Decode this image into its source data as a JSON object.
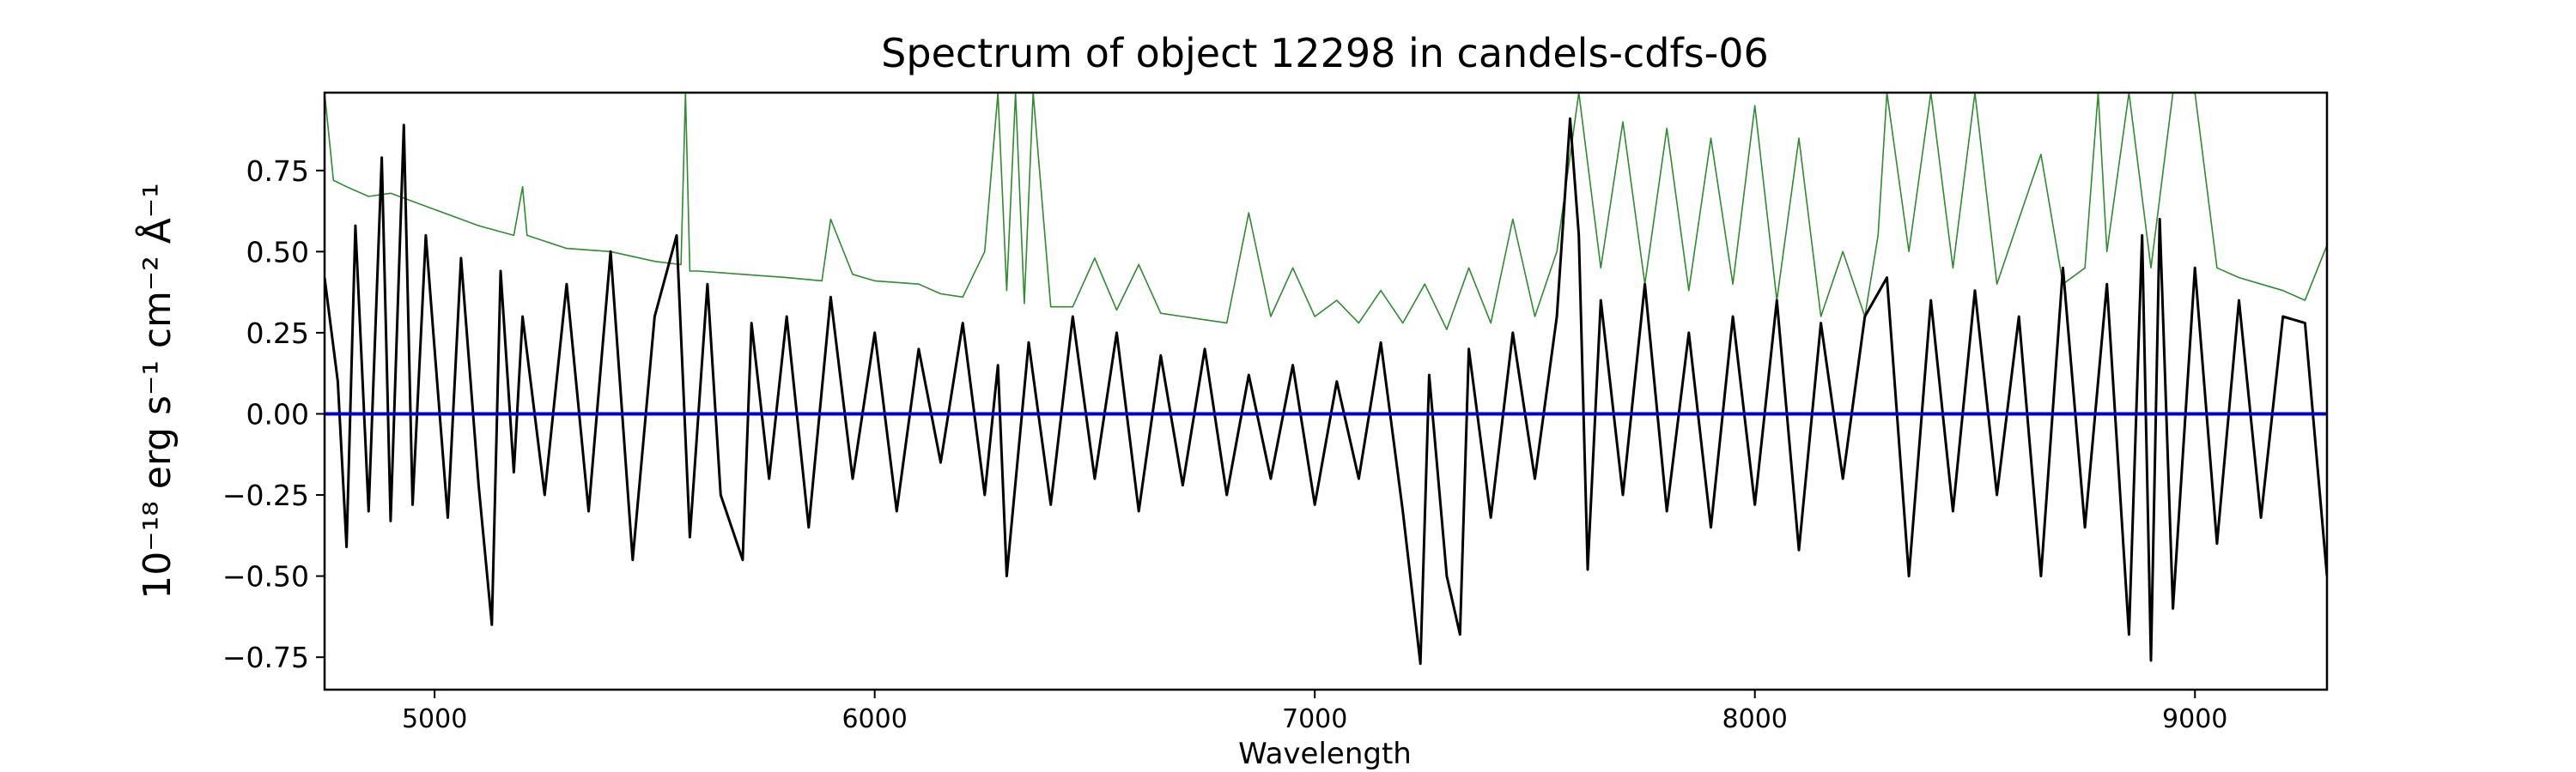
{
  "chart_data": {
    "type": "line",
    "title": "Spectrum of object 12298 in candels-cdfs-06",
    "xlabel": "Wavelength",
    "ylabel": "10⁻¹⁸ erg s⁻¹ cm⁻² Å⁻¹",
    "xlim": [
      4750,
      9300
    ],
    "ylim": [
      -0.85,
      0.99
    ],
    "grid": false,
    "x_ticks": [
      5000,
      6000,
      7000,
      8000,
      9000
    ],
    "y_ticks": [
      -0.75,
      -0.5,
      -0.25,
      0.0,
      0.25,
      0.5,
      0.75
    ],
    "x_tick_labels": [
      "5000",
      "6000",
      "7000",
      "8000",
      "9000"
    ],
    "y_tick_labels": [
      "−0.75",
      "−0.50",
      "−0.25",
      "0.00",
      "0.25",
      "0.50",
      "0.75"
    ],
    "series": [
      {
        "role": "flux",
        "color": "#000000",
        "x": [
          4750,
          4780,
          4800,
          4820,
          4850,
          4880,
          4900,
          4930,
          4950,
          4980,
          5000,
          5030,
          5060,
          5100,
          5130,
          5150,
          5180,
          5200,
          5250,
          5300,
          5350,
          5400,
          5450,
          5500,
          5550,
          5580,
          5620,
          5650,
          5700,
          5720,
          5760,
          5800,
          5850,
          5900,
          5950,
          6000,
          6050,
          6100,
          6150,
          6200,
          6250,
          6280,
          6300,
          6350,
          6400,
          6450,
          6500,
          6550,
          6600,
          6650,
          6700,
          6750,
          6800,
          6850,
          6900,
          6950,
          7000,
          7050,
          7100,
          7150,
          7200,
          7240,
          7260,
          7300,
          7330,
          7350,
          7400,
          7450,
          7500,
          7550,
          7580,
          7600,
          7620,
          7650,
          7700,
          7750,
          7800,
          7850,
          7900,
          7950,
          8000,
          8050,
          8100,
          8150,
          8200,
          8250,
          8300,
          8350,
          8400,
          8450,
          8500,
          8550,
          8600,
          8650,
          8700,
          8750,
          8800,
          8850,
          8880,
          8900,
          8920,
          8950,
          9000,
          9050,
          9100,
          9150,
          9200,
          9250,
          9300
        ],
        "y": [
          0.42,
          0.1,
          -0.41,
          0.58,
          -0.3,
          0.79,
          -0.33,
          0.89,
          -0.28,
          0.55,
          0.2,
          -0.32,
          0.48,
          -0.22,
          -0.65,
          0.44,
          -0.18,
          0.3,
          -0.25,
          0.4,
          -0.3,
          0.5,
          -0.45,
          0.3,
          0.55,
          -0.38,
          0.4,
          -0.25,
          -0.45,
          0.28,
          -0.2,
          0.3,
          -0.35,
          0.36,
          -0.2,
          0.25,
          -0.3,
          0.2,
          -0.15,
          0.28,
          -0.25,
          0.15,
          -0.5,
          0.22,
          -0.28,
          0.3,
          -0.2,
          0.25,
          -0.3,
          0.18,
          -0.22,
          0.2,
          -0.25,
          0.12,
          -0.2,
          0.15,
          -0.28,
          0.1,
          -0.2,
          0.22,
          -0.3,
          -0.77,
          0.12,
          -0.5,
          -0.68,
          0.2,
          -0.32,
          0.25,
          -0.2,
          0.3,
          0.91,
          0.55,
          -0.48,
          0.35,
          -0.25,
          0.4,
          -0.3,
          0.25,
          -0.35,
          0.3,
          -0.28,
          0.35,
          -0.42,
          0.28,
          -0.2,
          0.3,
          0.42,
          -0.5,
          0.35,
          -0.3,
          0.38,
          -0.25,
          0.3,
          -0.5,
          0.45,
          -0.35,
          0.4,
          -0.68,
          0.55,
          -0.76,
          0.6,
          -0.6,
          0.45,
          -0.4,
          0.35,
          -0.32,
          0.3,
          0.28,
          -0.5
        ]
      },
      {
        "role": "contamination",
        "color": "#2e8b2e",
        "x": [
          4750,
          4770,
          4800,
          4850,
          4900,
          5000,
          5100,
          5180,
          5200,
          5210,
          5300,
          5400,
          5500,
          5560,
          5570,
          5580,
          5600,
          5700,
          5800,
          5880,
          5900,
          5950,
          6000,
          6100,
          6150,
          6200,
          6250,
          6280,
          6300,
          6320,
          6340,
          6360,
          6400,
          6450,
          6500,
          6550,
          6600,
          6650,
          6700,
          6750,
          6800,
          6850,
          6900,
          6950,
          7000,
          7050,
          7100,
          7150,
          7200,
          7250,
          7300,
          7350,
          7400,
          7450,
          7500,
          7550,
          7600,
          7650,
          7700,
          7750,
          7800,
          7850,
          7900,
          7950,
          8000,
          8050,
          8100,
          8150,
          8200,
          8250,
          8280,
          8300,
          8350,
          8400,
          8450,
          8500,
          8550,
          8600,
          8650,
          8700,
          8750,
          8780,
          8800,
          8850,
          8900,
          8950,
          9000,
          9050,
          9100,
          9150,
          9200,
          9250,
          9300
        ],
        "y": [
          0.99,
          0.72,
          0.7,
          0.67,
          0.68,
          0.63,
          0.58,
          0.55,
          0.7,
          0.55,
          0.51,
          0.5,
          0.47,
          0.46,
          0.99,
          0.44,
          0.44,
          0.43,
          0.42,
          0.41,
          0.6,
          0.43,
          0.41,
          0.4,
          0.37,
          0.36,
          0.5,
          0.99,
          0.38,
          0.99,
          0.34,
          0.99,
          0.33,
          0.33,
          0.48,
          0.32,
          0.46,
          0.31,
          0.3,
          0.29,
          0.28,
          0.62,
          0.3,
          0.45,
          0.3,
          0.35,
          0.28,
          0.38,
          0.28,
          0.4,
          0.26,
          0.45,
          0.28,
          0.6,
          0.3,
          0.5,
          0.99,
          0.45,
          0.9,
          0.4,
          0.88,
          0.38,
          0.85,
          0.4,
          0.95,
          0.35,
          0.85,
          0.3,
          0.5,
          0.3,
          0.55,
          0.99,
          0.5,
          0.99,
          0.45,
          0.99,
          0.4,
          0.6,
          0.8,
          0.4,
          0.45,
          0.99,
          0.5,
          0.99,
          0.45,
          0.99,
          0.99,
          0.45,
          0.42,
          0.4,
          0.38,
          0.35,
          0.52
        ]
      },
      {
        "role": "model",
        "color": "#0000cc",
        "x": [
          4750,
          9300
        ],
        "y": [
          0.0,
          0.0
        ]
      }
    ]
  }
}
